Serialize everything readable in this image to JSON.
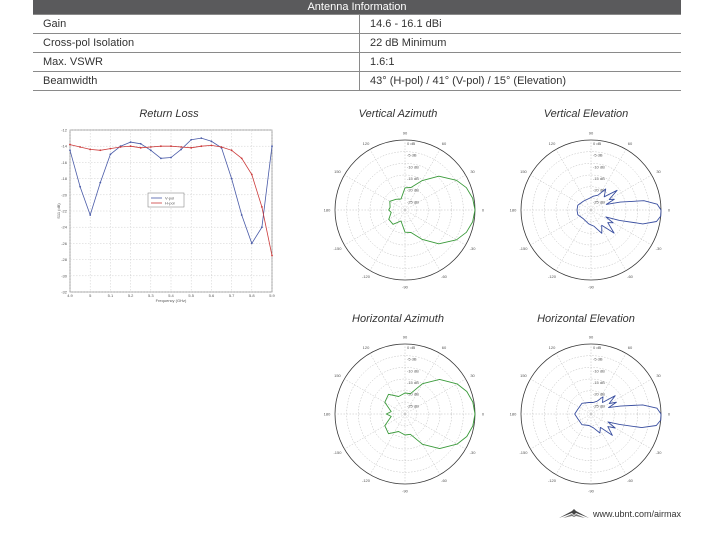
{
  "table": {
    "title": "Antenna Information",
    "rows": [
      {
        "label": "Gain",
        "value": "14.6 - 16.1 dBi"
      },
      {
        "label": "Cross-pol Isolation",
        "value": "22 dB Minimum"
      },
      {
        "label": "Max. VSWR",
        "value": "1.6:1"
      },
      {
        "label": "Beamwidth",
        "value": "43° (H-pol) / 41° (V-pol) / 15° (Elevation)"
      }
    ]
  },
  "charts": {
    "return_loss": {
      "title": "Return Loss",
      "xlabel": "Frequency (GHz)",
      "ylabel": "S11 (dB)",
      "legend": [
        "V-pol",
        "H-pol"
      ]
    },
    "vertical_azimuth": {
      "title": "Vertical Azimuth"
    },
    "vertical_elevation": {
      "title": "Vertical Elevation"
    },
    "horizontal_azimuth": {
      "title": "Horizontal Azimuth"
    },
    "horizontal_elevation": {
      "title": "Horizontal Elevation"
    },
    "polar_axis": {
      "ring_labels": [
        "0 dB",
        "-5 dB",
        "-10 dB",
        "-15 dB",
        "-20 dB",
        "-25 dB"
      ],
      "angle_labels": [
        "90",
        "60",
        "30",
        "0",
        "-30",
        "-60",
        "-90",
        "-120",
        "-150",
        "180",
        "150",
        "120"
      ]
    }
  },
  "chart_data": [
    {
      "type": "line",
      "title": "Return Loss",
      "xlabel": "Frequency (GHz)",
      "ylabel": "S11 (dB)",
      "xlim": [
        4.9,
        5.9
      ],
      "ylim": [
        -32,
        -12
      ],
      "x_ticks": [
        "4.9",
        "5",
        "5.1",
        "5.2",
        "5.3",
        "5.4",
        "5.5",
        "5.6",
        "5.7",
        "5.8",
        "5.9"
      ],
      "y_ticks": [
        "-12",
        "-14",
        "-16",
        "-18",
        "-20",
        "-22",
        "-24",
        "-26",
        "-28",
        "-30",
        "-32"
      ],
      "x": [
        4.9,
        4.95,
        5.0,
        5.05,
        5.1,
        5.15,
        5.2,
        5.25,
        5.3,
        5.35,
        5.4,
        5.45,
        5.5,
        5.55,
        5.6,
        5.65,
        5.7,
        5.75,
        5.8,
        5.85,
        5.9
      ],
      "series": [
        {
          "name": "V-pol",
          "color": "#4a5ba8",
          "values": [
            -14.5,
            -19.0,
            -22.5,
            -18.5,
            -15.0,
            -14.0,
            -13.5,
            -13.7,
            -14.5,
            -15.5,
            -15.4,
            -14.4,
            -13.2,
            -13.0,
            -13.4,
            -14.2,
            -18.0,
            -22.5,
            -26.0,
            -24.0,
            -14.0
          ]
        },
        {
          "name": "H-pol",
          "color": "#cc3b3b",
          "values": [
            -13.8,
            -14.1,
            -14.4,
            -14.5,
            -14.3,
            -14.1,
            -14.0,
            -14.2,
            -14.1,
            -14.0,
            -14.0,
            -14.1,
            -14.2,
            -14.0,
            -13.9,
            -14.1,
            -14.5,
            -15.5,
            -17.5,
            -21.5,
            -27.5
          ]
        }
      ],
      "legend_position": "center",
      "grid": true
    },
    {
      "type": "polar",
      "title": "Vertical Azimuth",
      "r_range_db": [
        -30,
        0
      ],
      "series": [
        {
          "color": "#3a9a3a",
          "angles_deg": [
            0,
            10,
            20,
            30,
            45,
            60,
            75,
            90,
            110,
            130,
            150,
            170,
            180,
            190,
            210,
            230,
            250,
            270,
            285,
            300,
            315,
            330,
            340,
            350
          ],
          "gain_db": [
            0,
            -0.6,
            -2.0,
            -4.5,
            -9.5,
            -15.5,
            -20,
            -20.5,
            -25,
            -24,
            -22.5,
            -23.5,
            -23,
            -24,
            -22,
            -22,
            -25,
            -20.5,
            -20,
            -15.5,
            -9.5,
            -4.5,
            -2.0,
            -0.6
          ]
        }
      ]
    },
    {
      "type": "polar",
      "title": "Vertical Elevation",
      "r_range_db": [
        -30,
        0
      ],
      "series": [
        {
          "color": "#3a4fa0",
          "angles_deg": [
            0,
            5,
            10,
            15,
            20,
            25,
            30,
            37,
            45,
            55,
            65,
            80,
            100,
            130,
            160,
            180,
            200,
            230,
            260,
            280,
            295,
            305,
            315,
            323,
            330,
            335,
            340,
            345,
            350,
            355
          ],
          "gain_db": [
            0,
            -1.5,
            -7,
            -17,
            -23,
            -19,
            -21,
            -16,
            -22,
            -19,
            -23,
            -24,
            -25,
            -25,
            -24,
            -24,
            -24,
            -25,
            -24,
            -23,
            -19,
            -22,
            -16,
            -21,
            -19,
            -23,
            -17,
            -7,
            -1.5,
            0
          ]
        }
      ]
    },
    {
      "type": "polar",
      "title": "Horizontal Azimuth",
      "r_range_db": [
        -30,
        0
      ],
      "series": [
        {
          "color": "#3a9a3a",
          "angles_deg": [
            0,
            10,
            20,
            30,
            45,
            60,
            75,
            90,
            110,
            130,
            150,
            170,
            180,
            190,
            210,
            230,
            250,
            270,
            285,
            300,
            315,
            330,
            340,
            350
          ],
          "gain_db": [
            0,
            -0.5,
            -1.8,
            -4.2,
            -9.0,
            -15.0,
            -21,
            -21,
            -22,
            -19,
            -20,
            -24,
            -22,
            -24,
            -20,
            -19,
            -22,
            -21,
            -21,
            -15.0,
            -9.0,
            -4.2,
            -1.8,
            -0.5
          ]
        }
      ]
    },
    {
      "type": "polar",
      "title": "Horizontal Elevation",
      "r_range_db": [
        -30,
        0
      ],
      "series": [
        {
          "color": "#3a4fa0",
          "angles_deg": [
            0,
            5,
            10,
            15,
            20,
            25,
            30,
            37,
            45,
            55,
            65,
            80,
            100,
            130,
            160,
            180,
            200,
            230,
            260,
            280,
            295,
            305,
            315,
            323,
            330,
            335,
            340,
            345,
            350,
            355
          ],
          "gain_db": [
            0,
            -1.6,
            -7.5,
            -17,
            -22,
            -18,
            -21,
            -17,
            -23,
            -21,
            -24,
            -25,
            -25,
            -24,
            -24,
            -23,
            -24,
            -24,
            -25,
            -24,
            -21,
            -23,
            -17,
            -21,
            -18,
            -22,
            -17,
            -7.5,
            -1.6,
            0
          ]
        }
      ]
    }
  ],
  "footer": {
    "logo_icon": "ubiquiti-wing-icon",
    "url": "www.ubnt.com/airmax"
  }
}
